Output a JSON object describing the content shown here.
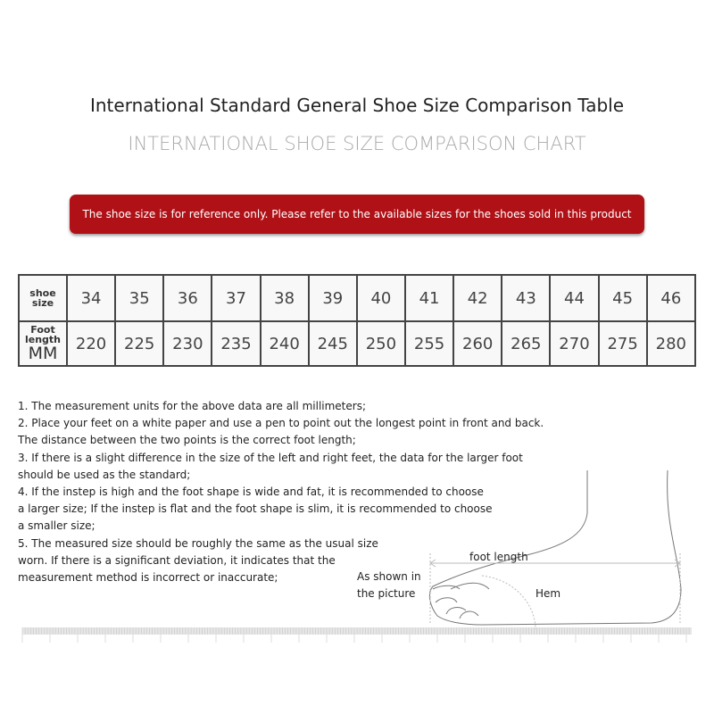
{
  "title": "International Standard General Shoe Size Comparison Table",
  "subtitle": "INTERNATIONAL SHOE SIZE COMPARISON CHART",
  "banner": {
    "text": "The shoe size is for reference only. Please refer to the available sizes for the shoes sold in this product",
    "color": "#b01116"
  },
  "table": {
    "row1_header": [
      "shoe",
      "size"
    ],
    "row2_header": [
      "Foot",
      "length",
      "MM"
    ],
    "sizes": [
      "34",
      "35",
      "36",
      "37",
      "38",
      "39",
      "40",
      "41",
      "42",
      "43",
      "44",
      "45",
      "46"
    ],
    "lengths": [
      "220",
      "225",
      "230",
      "235",
      "240",
      "245",
      "250",
      "255",
      "260",
      "265",
      "270",
      "275",
      "280"
    ]
  },
  "notes": [
    "1. The measurement units for the above data are all millimeters;",
    "2. Place your feet on a white paper and use a pen to point out the longest point in front and back.",
    "The distance between the two points is the correct foot length;",
    "3. If there is a slight difference in the size of the left and right feet, the data for the larger foot",
    "should be used as the standard;",
    "4. If the instep is high and the foot shape is wide and fat, it is recommended to choose",
    "a larger size; If the instep is flat and the foot shape is slim, it is recommended to choose",
    "a smaller size;",
    "5. The measured size should be roughly the same as the usual size",
    "worn. If there is a significant deviation, it indicates that the",
    "measurement method is incorrect or inaccurate;"
  ],
  "diagram": {
    "foot_length": "foot length",
    "as_shown": [
      "As shown in",
      "the picture"
    ],
    "hem": "Hem",
    "icon": "foot-on-ruler-illustration"
  }
}
